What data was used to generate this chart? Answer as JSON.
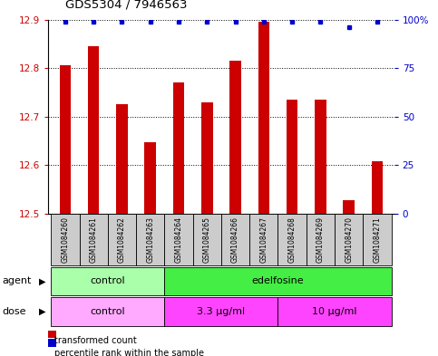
{
  "title": "GDS5304 / 7946563",
  "samples": [
    "GSM1084260",
    "GSM1084261",
    "GSM1084262",
    "GSM1084263",
    "GSM1084264",
    "GSM1084265",
    "GSM1084266",
    "GSM1084267",
    "GSM1084268",
    "GSM1084269",
    "GSM1084270",
    "GSM1084271"
  ],
  "red_values": [
    12.805,
    12.845,
    12.725,
    12.648,
    12.77,
    12.73,
    12.815,
    12.895,
    12.735,
    12.735,
    12.528,
    12.608
  ],
  "blue_values": [
    99,
    99,
    99,
    99,
    99,
    99,
    99,
    99,
    99,
    99,
    96,
    99
  ],
  "ylim_left": [
    12.5,
    12.9
  ],
  "ylim_right": [
    0,
    100
  ],
  "yticks_left": [
    12.5,
    12.6,
    12.7,
    12.8,
    12.9
  ],
  "yticks_right": [
    0,
    25,
    50,
    75,
    100
  ],
  "ytick_right_labels": [
    "0",
    "25",
    "50",
    "75",
    "100%"
  ],
  "bar_color": "#cc0000",
  "dot_color": "#0000cc",
  "agent_groups": [
    {
      "label": "control",
      "start": 0,
      "end": 3,
      "color": "#aaffaa"
    },
    {
      "label": "edelfosine",
      "start": 4,
      "end": 11,
      "color": "#44ee44"
    }
  ],
  "dose_groups": [
    {
      "label": "control",
      "start": 0,
      "end": 3,
      "color": "#ffaaff"
    },
    {
      "label": "3.3 μg/ml",
      "start": 4,
      "end": 7,
      "color": "#ff44ff"
    },
    {
      "label": "10 μg/ml",
      "start": 8,
      "end": 11,
      "color": "#ff44ff"
    }
  ],
  "legend_red": "transformed count",
  "legend_blue": "percentile rank within the sample",
  "label_agent": "agent",
  "label_dose": "dose",
  "background_color": "#ffffff",
  "sample_box_color": "#cccccc"
}
